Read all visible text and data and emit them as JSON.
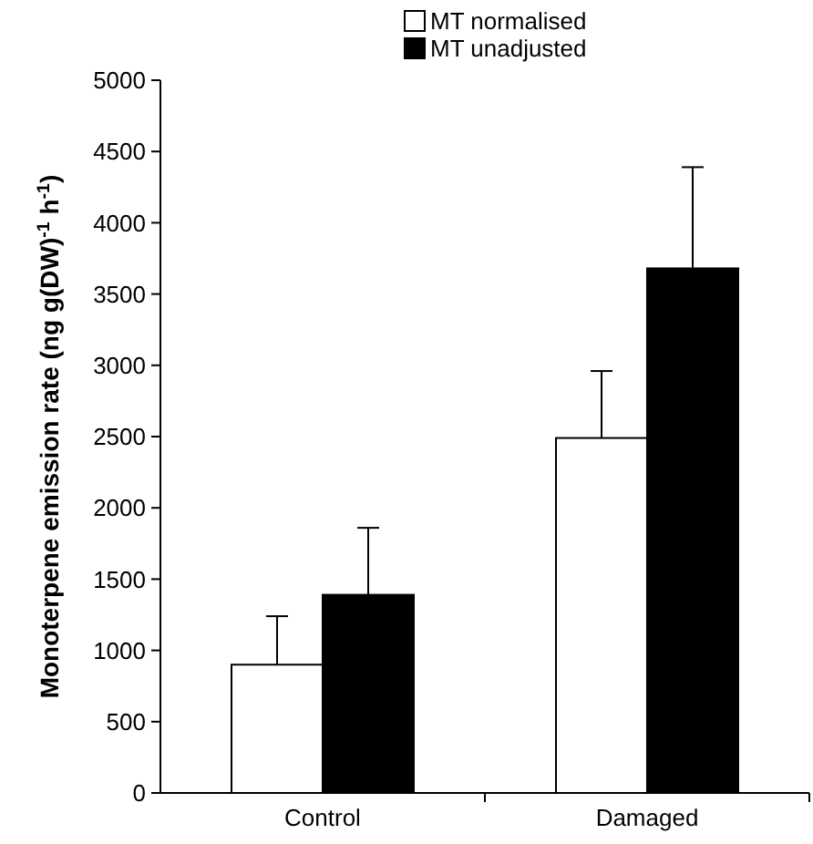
{
  "chart_data": {
    "type": "bar",
    "ylabel": "Monoterpene emission rate (ng g(DW)$^{-1}$ h$^{-1}$)",
    "categories": [
      "Control",
      "Damaged"
    ],
    "series": [
      {
        "name": "MT normalised",
        "color": "#ffffff",
        "values": [
          900,
          2490
        ],
        "errors": [
          [
            900,
            1240
          ],
          [
            2490,
            2960
          ]
        ]
      },
      {
        "name": "MT unadjusted",
        "color": "#000000",
        "values": [
          1390,
          3680
        ],
        "errors": [
          [
            1390,
            1860
          ],
          [
            3680,
            4390
          ]
        ]
      }
    ],
    "ylim": [
      0,
      5000
    ],
    "yticks": [
      0,
      500,
      1000,
      1500,
      2000,
      2500,
      3000,
      3500,
      4000,
      4500,
      5000
    ],
    "grid": false,
    "legend": "top"
  }
}
